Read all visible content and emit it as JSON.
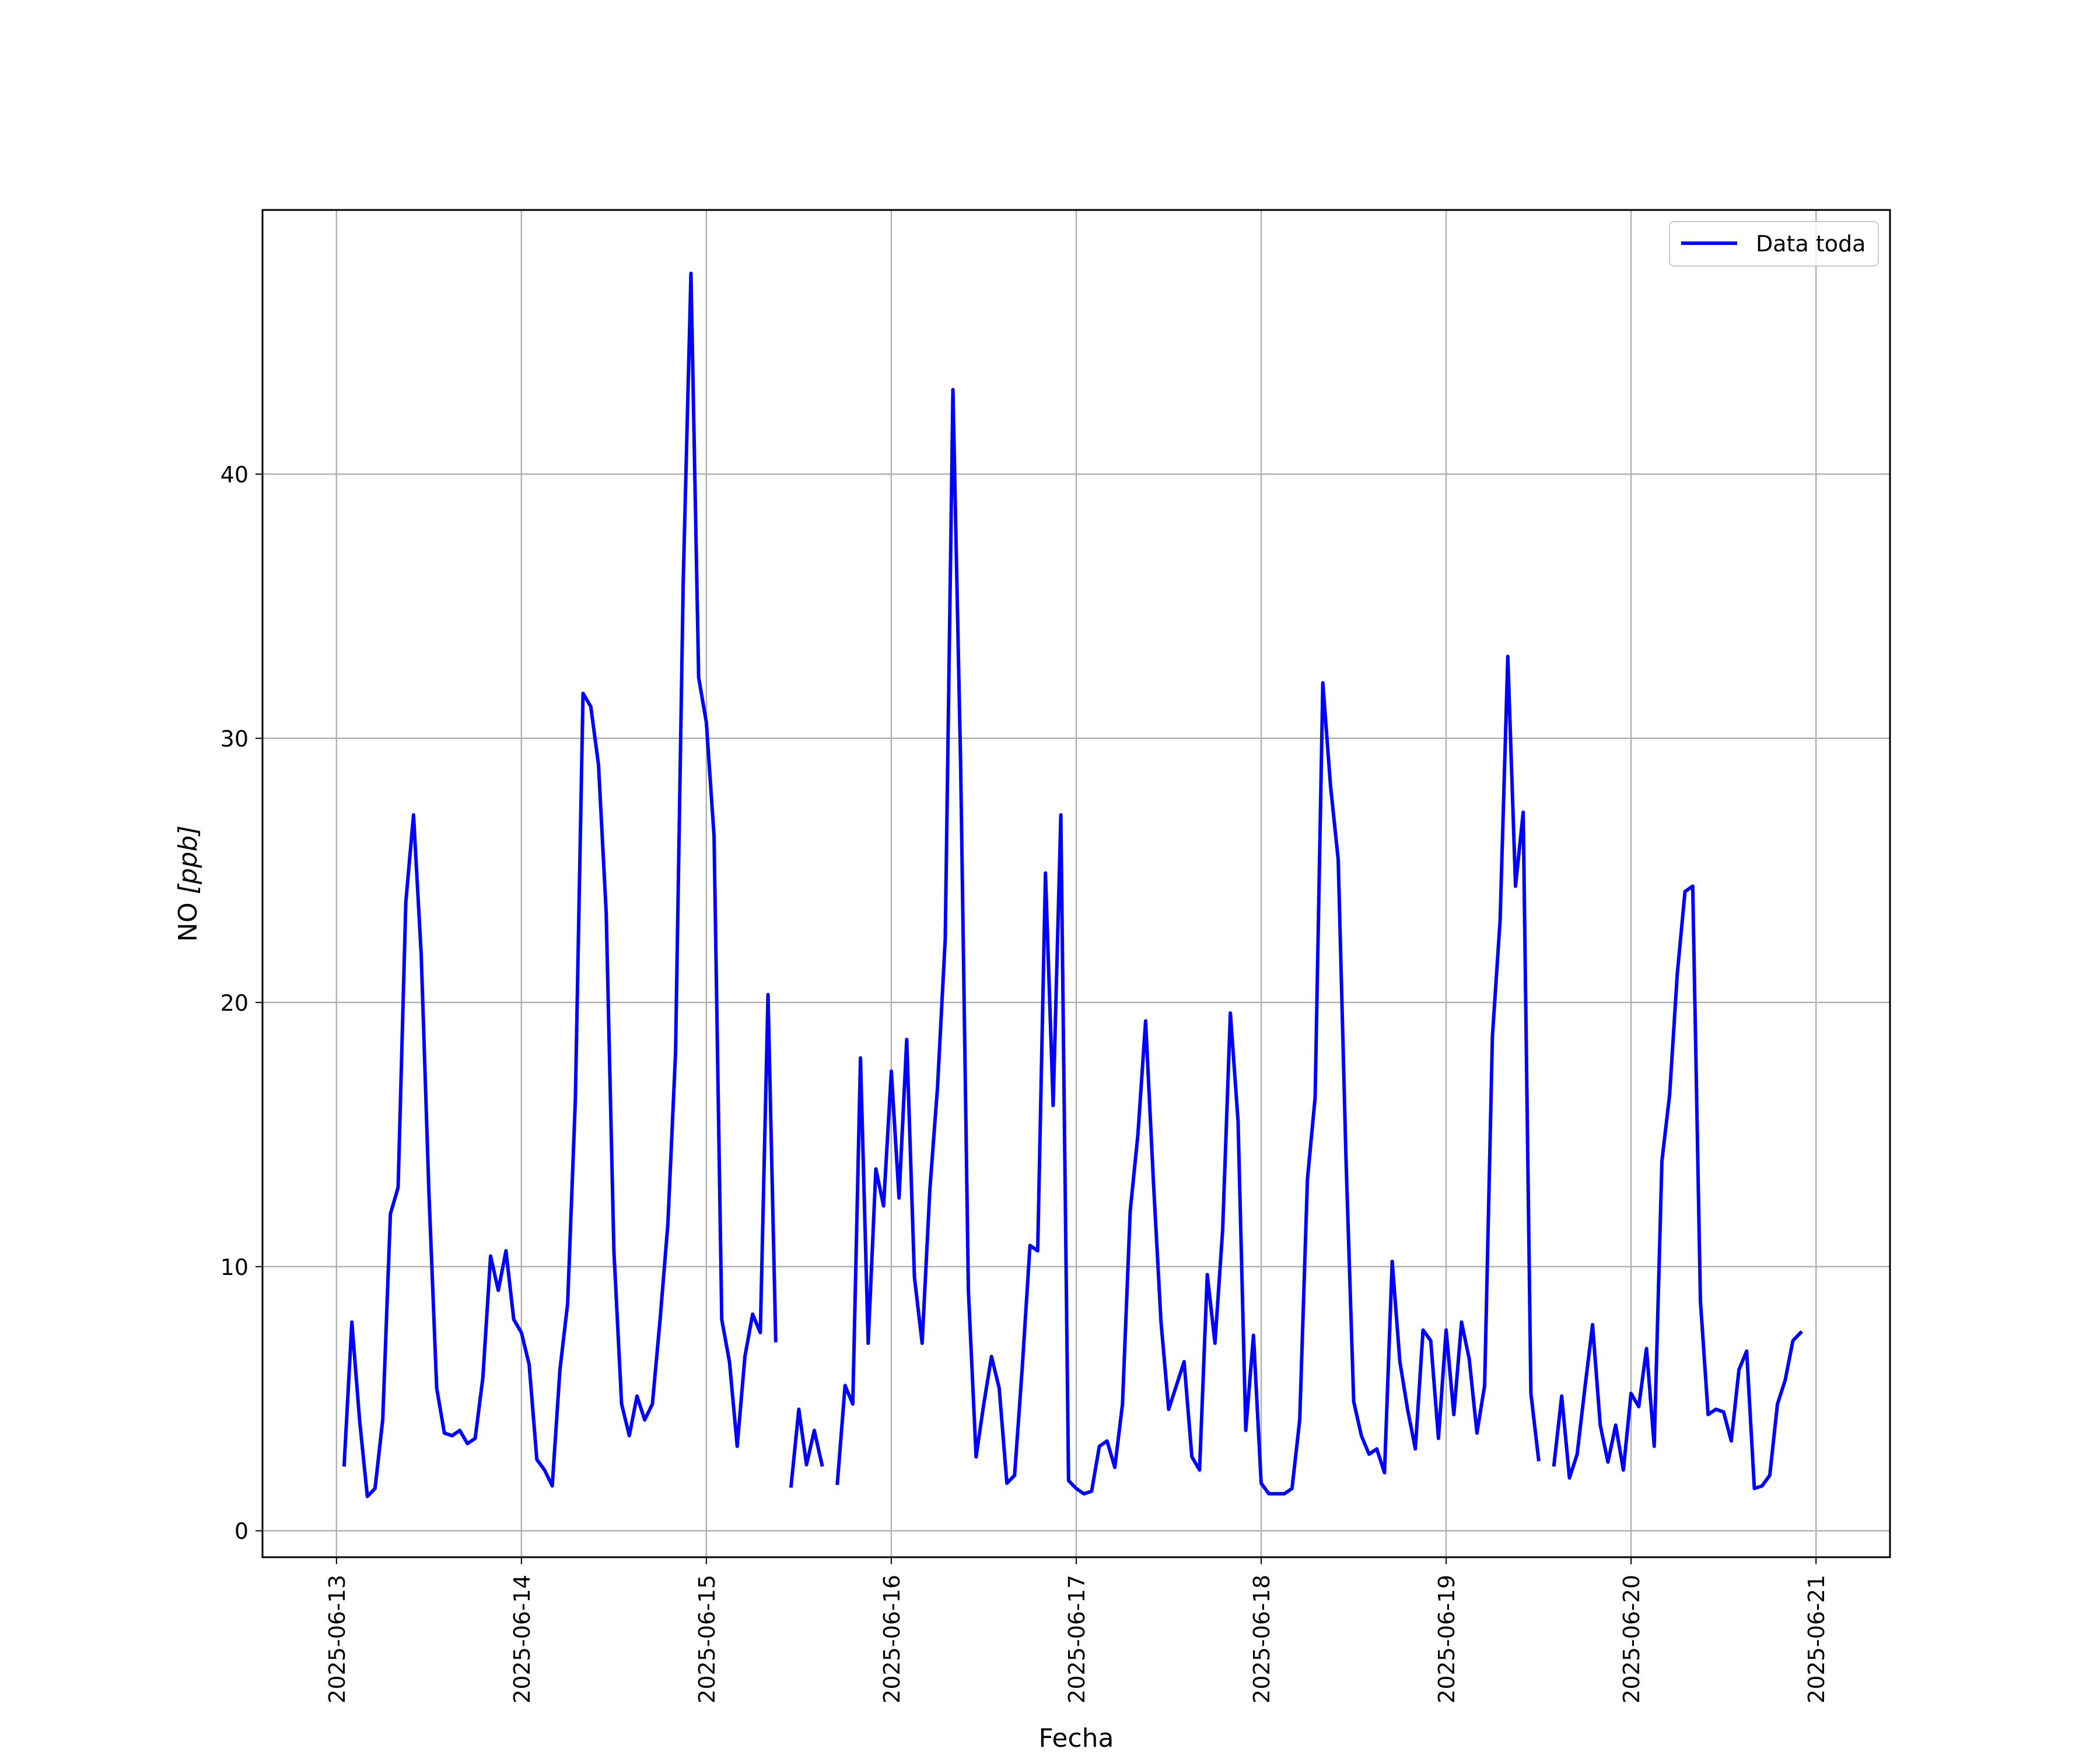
{
  "chart_data": {
    "type": "line",
    "title": "",
    "xlabel": "Fecha",
    "ylabel": "NO [ppb]",
    "ylabel_parts": {
      "text": "NO ",
      "unit": "[ppb]"
    },
    "x_ticks": [
      "2025-06-13",
      "2025-06-14",
      "2025-06-15",
      "2025-06-16",
      "2025-06-17",
      "2025-06-18",
      "2025-06-19",
      "2025-06-20",
      "2025-06-21"
    ],
    "y_ticks": [
      0,
      10,
      20,
      30,
      40
    ],
    "xlim": [
      "2025-06-12 14:24",
      "2025-06-21 09:36"
    ],
    "ylim": [
      -1,
      50
    ],
    "grid": true,
    "legend_position": "top-right",
    "series": [
      {
        "name": "Data toda",
        "color": "#0000ff",
        "time_step_hours": 1,
        "start": "2025-06-13 01:00",
        "values": [
          2.5,
          7.9,
          4.2,
          1.3,
          1.6,
          4.2,
          12.0,
          13.0,
          23.8,
          27.1,
          21.8,
          12.8,
          5.4,
          3.7,
          3.6,
          3.8,
          3.3,
          3.5,
          5.8,
          10.4,
          9.1,
          10.6,
          8.0,
          7.5,
          6.3,
          2.7,
          2.3,
          1.7,
          6.1,
          8.6,
          16.3,
          31.7,
          31.2,
          29.0,
          23.4,
          10.6,
          4.8,
          3.6,
          5.1,
          4.2,
          4.8,
          8.0,
          11.6,
          18.1,
          36.0,
          47.6,
          32.3,
          30.6,
          26.3,
          8.0,
          6.4,
          3.2,
          6.6,
          8.2,
          7.5,
          20.3,
          7.2,
          null,
          1.7,
          4.6,
          2.5,
          3.8,
          2.5,
          null,
          1.8,
          5.5,
          4.8,
          17.9,
          7.1,
          13.7,
          12.3,
          17.4,
          12.6,
          18.6,
          9.6,
          7.1,
          12.9,
          16.8,
          22.4,
          43.2,
          29.0,
          9.1,
          2.8,
          4.8,
          6.6,
          5.4,
          1.8,
          2.1,
          6.2,
          10.8,
          10.6,
          24.9,
          16.1,
          27.1,
          1.9,
          1.6,
          1.4,
          1.5,
          3.2,
          3.4,
          2.4,
          4.8,
          12.1,
          15.0,
          19.3,
          13.3,
          7.9,
          4.6,
          5.5,
          6.4,
          2.8,
          2.3,
          9.7,
          7.1,
          11.4,
          19.6,
          15.5,
          3.8,
          7.4,
          1.8,
          1.4,
          1.4,
          1.4,
          1.6,
          4.2,
          13.3,
          16.4,
          32.1,
          28.2,
          25.4,
          14.1,
          4.9,
          3.6,
          2.9,
          3.1,
          2.2,
          10.2,
          6.4,
          4.6,
          3.1,
          7.6,
          7.2,
          3.5,
          7.6,
          4.4,
          7.9,
          6.5,
          3.7,
          5.5,
          18.7,
          23.1,
          33.1,
          24.4,
          27.2,
          5.2,
          2.7,
          null,
          2.5,
          5.1,
          2.0,
          2.9,
          5.4,
          7.8,
          4.0,
          2.6,
          4.0,
          2.3,
          5.2,
          4.7,
          6.9,
          3.2,
          14.0,
          16.5,
          21.1,
          24.2,
          24.4,
          8.7,
          4.4,
          4.6,
          4.5,
          3.4,
          6.1,
          6.8,
          1.6,
          1.7,
          2.1,
          4.8,
          5.7,
          7.2,
          7.5
        ]
      }
    ]
  }
}
